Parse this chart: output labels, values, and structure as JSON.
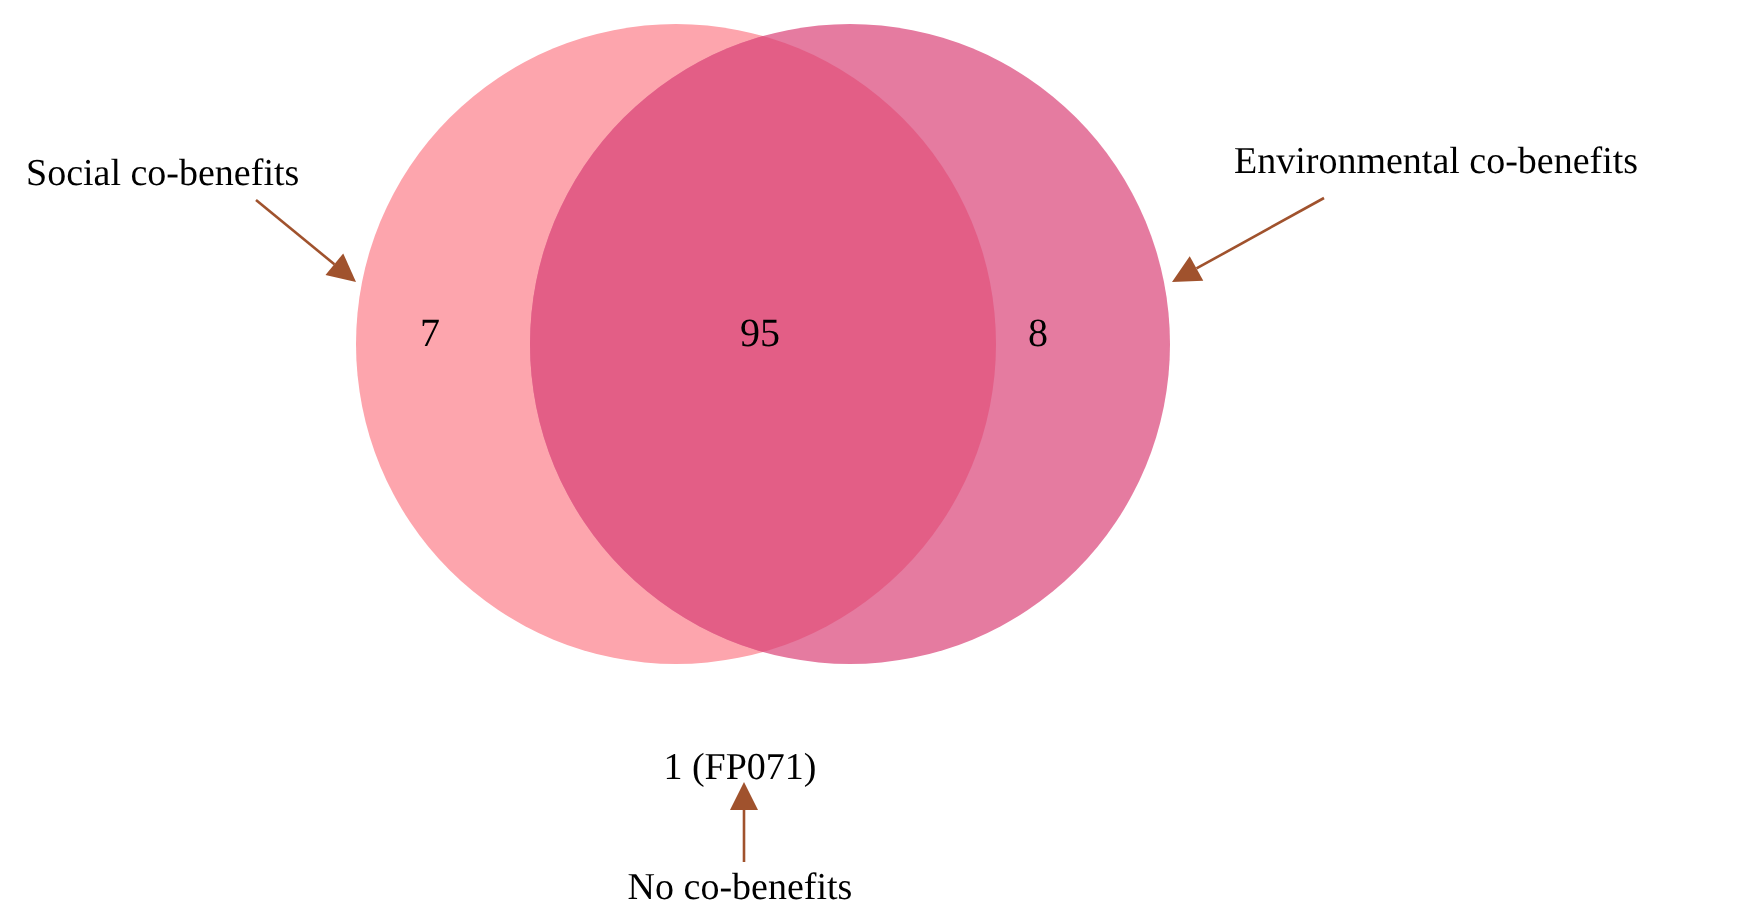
{
  "chart_data": {
    "type": "other",
    "categories": [
      null,
      null,
      null
    ],
    "values": [
      7,
      95,
      8
    ],
    "colors": [
      "#fda5ad",
      "#e35e86",
      "#e57ba0"
    ],
    "data_labels": true,
    "annotations": [
      "Social co-benefits",
      "Environmental co-benefits",
      "1 (FP071)",
      "No co-benefits"
    ]
  }
}
